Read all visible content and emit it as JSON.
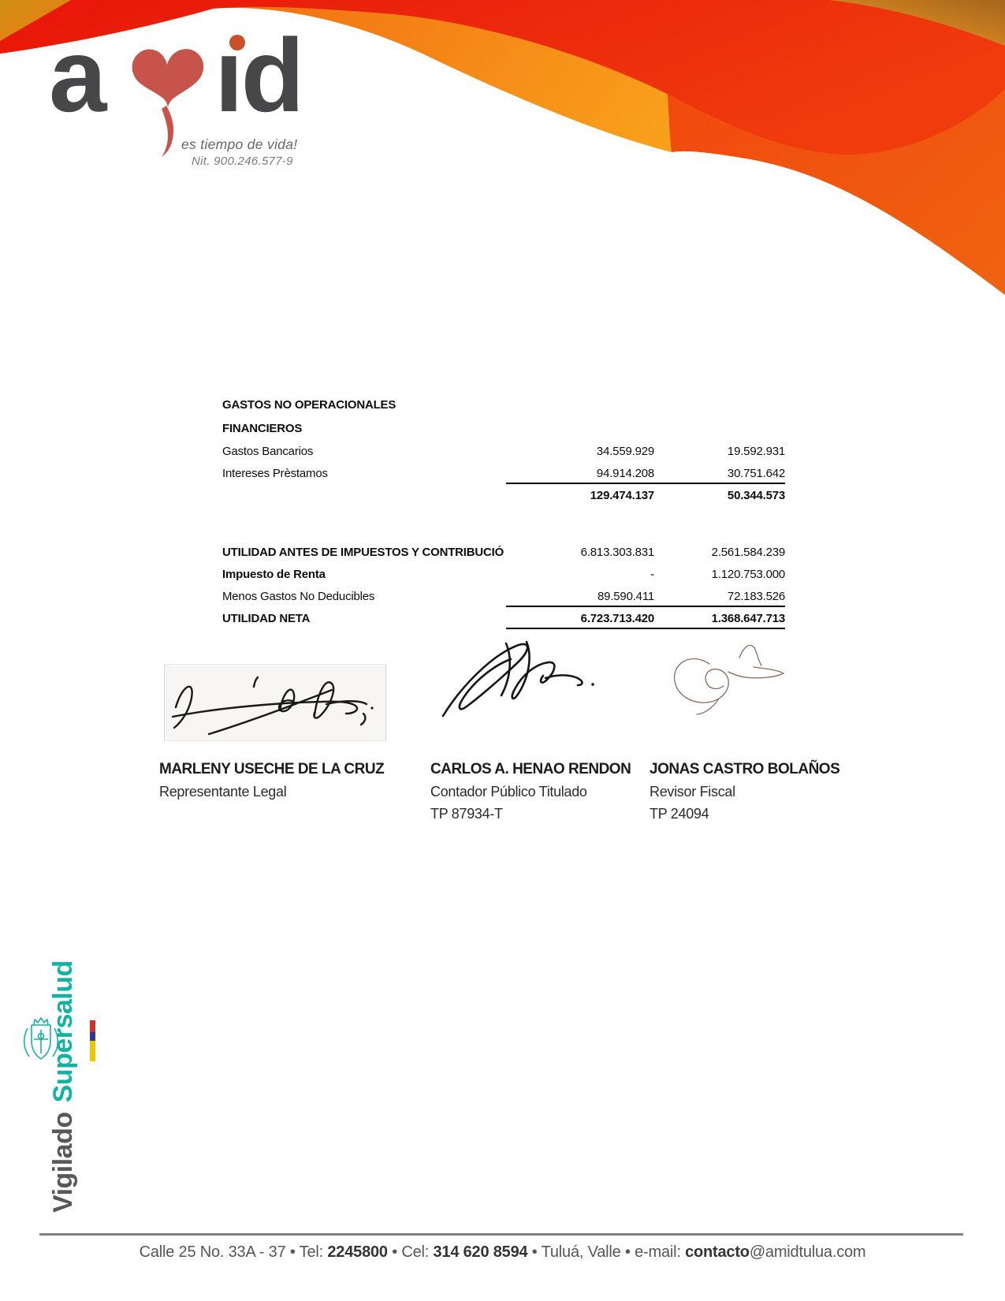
{
  "brand": {
    "logo_prefix": "a",
    "logo_suffix_dotless": "ıd",
    "tagline": "es tiempo de vida!",
    "nit": "Nit. 900.246.577-9"
  },
  "colors": {
    "heart_red": "#c6544b",
    "logo_gray": "#47474a",
    "swoosh_red": "#e8150a",
    "swoosh_orange": "#f0500f",
    "swoosh_amber": "#f9a01b",
    "supersalud_teal": "#14b2a0",
    "footer_gray": "#55555a"
  },
  "statement": {
    "section_title_1": "GASTOS NO OPERACIONALES",
    "section_title_2": "FINANCIEROS",
    "rows": [
      {
        "label": "Gastos Bancarios",
        "col1": "34.559.929",
        "col2": "19.592.931",
        "style": "plain"
      },
      {
        "label": "Intereses Prèstamos",
        "col1": "94.914.208",
        "col2": "30.751.642",
        "style": "plain",
        "rule_after": true
      },
      {
        "label": "",
        "col1": "129.474.137",
        "col2": "50.344.573",
        "style": "bold"
      },
      {
        "style": "spacer"
      },
      {
        "style": "spacer"
      },
      {
        "label": "UTILIDAD ANTES DE IMPUESTOS Y CONTRIBUCIÓ",
        "col1": "6.813.303.831",
        "col2": "2.561.584.239",
        "style": "bold-label"
      },
      {
        "label": "Impuesto de Renta",
        "col1": "-",
        "col2": "1.120.753.000",
        "style": "bold-label"
      },
      {
        "label": "Menos Gastos No Deducibles",
        "col1": "89.590.411",
        "col2": "72.183.526",
        "style": "plain",
        "rule_after": true
      },
      {
        "label": "UTILIDAD NETA",
        "col1": "6.723.713.420",
        "col2": "1.368.647.713",
        "style": "bold",
        "rule_after": true
      }
    ]
  },
  "signatories": [
    {
      "name": "MARLENY USECHE DE LA CRUZ",
      "title": "Representante Legal",
      "tp": ""
    },
    {
      "name": "CARLOS A. HENAO RENDON",
      "title": "Contador Público Titulado",
      "tp": "TP 87934-T"
    },
    {
      "name": "JONAS CASTRO BOLAÑOS",
      "title": "Revisor Fiscal",
      "tp": "TP 24094"
    }
  ],
  "supervision": {
    "word_gray": "Vigilado",
    "word_teal": "Supersalud"
  },
  "footer": {
    "parts": [
      {
        "text": "Calle 25 No. 33A - 37 • Tel: ",
        "bold": false
      },
      {
        "text": "2245800",
        "bold": true
      },
      {
        "text": " • Cel: ",
        "bold": false
      },
      {
        "text": "314 620 8594",
        "bold": true
      },
      {
        "text": " • Tuluá, Valle • e-mail: ",
        "bold": false
      },
      {
        "text": "contacto",
        "bold": true
      },
      {
        "text": "@amidtulua.com",
        "bold": false
      }
    ]
  }
}
